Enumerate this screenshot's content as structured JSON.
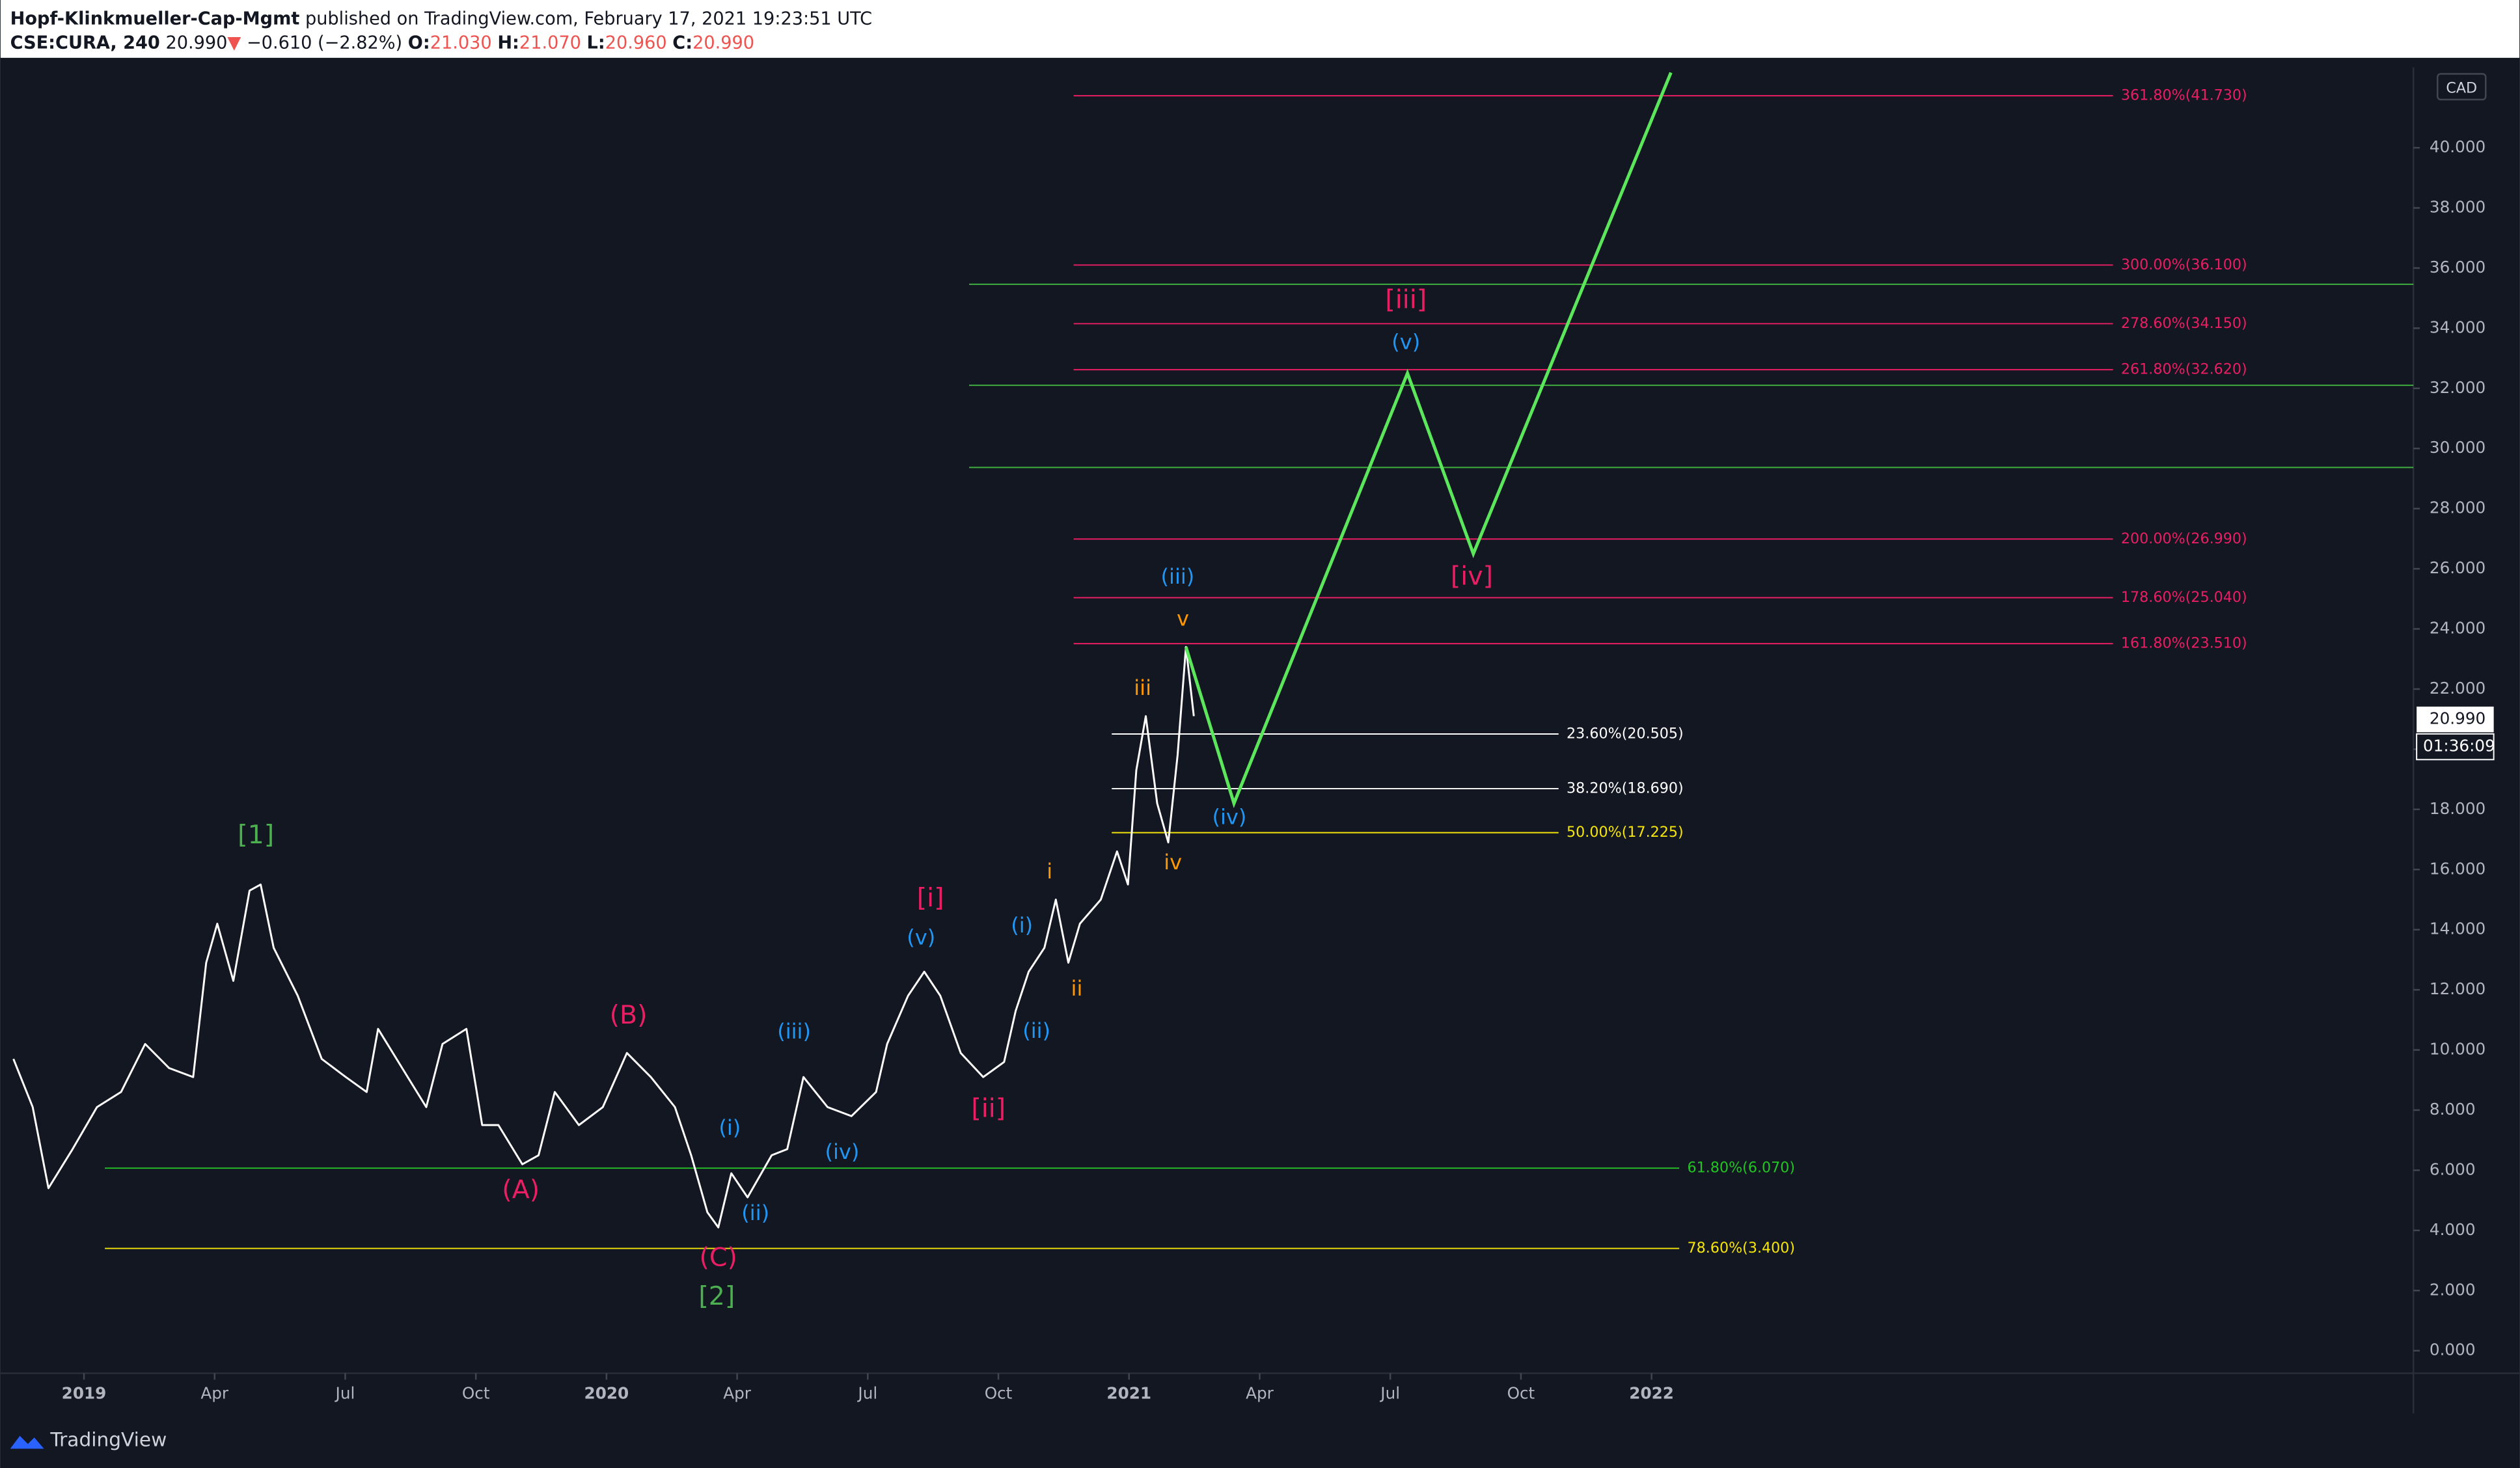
{
  "header": {
    "author": "Hopf-Klinkmueller-Cap-Mgmt",
    "published": "published on TradingView.com, February 17, 2021 19:23:51 UTC",
    "symbol": "CSE:CURA, 240",
    "last": "20.990",
    "arrow": "▼",
    "change": "−0.610 (−2.82%)",
    "o_label": "O:",
    "open": "21.030",
    "h_label": "H:",
    "high": "21.070",
    "l_label": "L:",
    "low": "20.960",
    "c_label": "C:",
    "close": "20.990"
  },
  "footer": {
    "brand": "TradingView"
  },
  "chart_data": {
    "type": "line",
    "color": "#ffffff",
    "currency": "CAD",
    "xlim": [
      2018.865,
      2023.458
    ],
    "ylim": [
      -0.75,
      42.67
    ],
    "xticks": [
      {
        "value": 2019,
        "label": "2019"
      },
      {
        "value": 2019.25,
        "label": "Apr"
      },
      {
        "value": 2019.5,
        "label": "Jul"
      },
      {
        "value": 2019.75,
        "label": "Oct"
      },
      {
        "value": 2020,
        "label": "2020"
      },
      {
        "value": 2020.25,
        "label": "Apr"
      },
      {
        "value": 2020.5,
        "label": "Jul"
      },
      {
        "value": 2020.75,
        "label": "Oct"
      },
      {
        "value": 2021,
        "label": "2021"
      },
      {
        "value": 2021.25,
        "label": "Apr"
      },
      {
        "value": 2021.5,
        "label": "Jul"
      },
      {
        "value": 2021.75,
        "label": "Oct"
      },
      {
        "value": 2022,
        "label": "2022"
      }
    ],
    "yticks": [
      {
        "value": 0,
        "label": "0.000"
      },
      {
        "value": 2,
        "label": "2.000"
      },
      {
        "value": 4,
        "label": "4.000"
      },
      {
        "value": 6,
        "label": "6.000"
      },
      {
        "value": 8,
        "label": "8.000"
      },
      {
        "value": 10,
        "label": "10.000"
      },
      {
        "value": 12,
        "label": "12.000"
      },
      {
        "value": 14,
        "label": "14.000"
      },
      {
        "value": 16,
        "label": "16.000"
      },
      {
        "value": 18,
        "label": "18.000"
      },
      {
        "value": 20,
        "label": "20.000"
      },
      {
        "value": 22,
        "label": "22.000"
      },
      {
        "value": 24,
        "label": "24.000"
      },
      {
        "value": 26,
        "label": "26.000"
      },
      {
        "value": 28,
        "label": "28.000"
      },
      {
        "value": 30,
        "label": "30.000"
      },
      {
        "value": 32,
        "label": "32.000"
      },
      {
        "value": 34,
        "label": "34.000"
      },
      {
        "value": 36,
        "label": "36.000"
      },
      {
        "value": 38,
        "label": "38.000"
      },
      {
        "value": 40,
        "label": "40.000"
      }
    ],
    "x": [
      2018.865,
      2018.902,
      2018.932,
      2018.978,
      2019.025,
      2019.071,
      2019.117,
      2019.163,
      2019.209,
      2019.234,
      2019.255,
      2019.286,
      2019.317,
      2019.338,
      2019.363,
      2019.409,
      2019.455,
      2019.501,
      2019.541,
      2019.563,
      2019.609,
      2019.655,
      2019.686,
      2019.732,
      2019.762,
      2019.793,
      2019.839,
      2019.87,
      2019.901,
      2019.947,
      2019.993,
      2020.039,
      2020.085,
      2020.131,
      2020.162,
      2020.193,
      2020.214,
      2020.239,
      2020.27,
      2020.316,
      2020.346,
      2020.377,
      2020.423,
      2020.469,
      2020.516,
      2020.537,
      2020.577,
      2020.608,
      2020.639,
      2020.678,
      2020.721,
      2020.761,
      2020.783,
      2020.808,
      2020.838,
      2020.86,
      2020.884,
      2020.906,
      2020.946,
      2020.977,
      2020.998,
      2021.014,
      2021.032,
      2021.054,
      2021.075,
      2021.093,
      2021.109,
      2021.124
    ],
    "values": [
      9.7,
      8.1,
      5.4,
      6.7,
      8.1,
      8.6,
      10.2,
      9.4,
      9.1,
      12.9,
      14.2,
      12.3,
      15.3,
      15.5,
      13.4,
      11.8,
      9.7,
      9.1,
      8.6,
      10.7,
      9.4,
      8.1,
      10.2,
      10.7,
      7.5,
      7.5,
      6.2,
      6.5,
      8.6,
      7.5,
      8.1,
      9.9,
      9.1,
      8.1,
      6.5,
      4.6,
      4.1,
      5.9,
      5.1,
      6.5,
      6.7,
      9.1,
      8.1,
      7.8,
      8.6,
      10.2,
      11.8,
      12.6,
      11.8,
      9.9,
      9.1,
      9.6,
      11.3,
      12.6,
      13.4,
      15.0,
      12.9,
      14.2,
      15.0,
      16.6,
      15.5,
      19.3,
      21.1,
      18.2,
      16.9,
      19.8,
      23.4,
      21.1
    ],
    "projection": {
      "color": "#5ce65c",
      "x": [
        2021.109,
        2021.201,
        2021.533,
        2021.659,
        2022.037
      ],
      "values": [
        23.4,
        18.2,
        32.5,
        26.5,
        42.5
      ]
    },
    "levels": [
      {
        "label": "361.80%(41.730)",
        "value": 41.73,
        "color": "#e91e63",
        "x_start": 2020.894,
        "x_end": 2022.883
      },
      {
        "label": "300.00%(36.100)",
        "value": 36.1,
        "color": "#e91e63",
        "x_start": 2020.894,
        "x_end": 2022.883
      },
      {
        "label": "278.60%(34.150)",
        "value": 34.15,
        "color": "#e91e63",
        "x_start": 2020.894,
        "x_end": 2022.883
      },
      {
        "label": "261.80%(32.620)",
        "value": 32.62,
        "color": "#e91e63",
        "x_start": 2020.894,
        "x_end": 2022.883
      },
      {
        "label": "200.00%(26.990)",
        "value": 26.99,
        "color": "#e91e63",
        "x_start": 2020.894,
        "x_end": 2022.883
      },
      {
        "label": "178.60%(25.040)",
        "value": 25.04,
        "color": "#e91e63",
        "x_start": 2020.894,
        "x_end": 2022.883
      },
      {
        "label": "161.80%(23.510)",
        "value": 23.51,
        "color": "#e91e63",
        "x_start": 2020.894,
        "x_end": 2022.883
      },
      {
        "label": "23.60%(20.505)",
        "value": 20.505,
        "color": "#ffffff",
        "x_start": 2020.967,
        "x_end": 2021.822
      },
      {
        "label": "38.20%(18.690)",
        "value": 18.69,
        "color": "#ffffff",
        "x_start": 2020.967,
        "x_end": 2021.822
      },
      {
        "label": "50.00%(17.225)",
        "value": 17.225,
        "color": "#f5e50a",
        "x_start": 2020.967,
        "x_end": 2021.822
      },
      {
        "label": "61.80%(6.070)",
        "value": 6.07,
        "color": "#22c322",
        "x_start": 2019.04,
        "x_end": 2022.053
      },
      {
        "label": "78.60%(3.400)",
        "value": 3.4,
        "color": "#f5e50a",
        "x_start": 2019.04,
        "x_end": 2022.053
      }
    ],
    "support_lines": [
      {
        "value": 35.46,
        "color": "#3fae3f",
        "x_start": 2020.694
      },
      {
        "value": 32.1,
        "color": "#3fae3f",
        "x_start": 2020.694
      },
      {
        "value": 29.37,
        "color": "#3fae3f",
        "x_start": 2020.694
      }
    ],
    "annotations": [
      {
        "text": "[1]",
        "x": 2019.329,
        "y": 17.1,
        "color": "#4caf50"
      },
      {
        "text": "[2]",
        "x": 2020.211,
        "y": 1.76,
        "color": "#4caf50"
      },
      {
        "text": "(A)",
        "x": 2019.836,
        "y": 5.29,
        "color": "#e91e63"
      },
      {
        "text": "(B)",
        "x": 2020.042,
        "y": 11.1,
        "color": "#e91e63"
      },
      {
        "text": "(C)",
        "x": 2020.214,
        "y": 3.04,
        "color": "#e91e63"
      },
      {
        "text": "[i]",
        "x": 2020.62,
        "y": 15.0,
        "color": "#e91e63"
      },
      {
        "text": "[ii]",
        "x": 2020.731,
        "y": 8.0,
        "color": "#e91e63"
      },
      {
        "text": "[iii]",
        "x": 2021.53,
        "y": 34.9,
        "color": "#e91e63"
      },
      {
        "text": "[iv]",
        "x": 2021.656,
        "y": 25.7,
        "color": "#e91e63"
      },
      {
        "text": "(i)",
        "x": 2020.236,
        "y": 7.37,
        "color": "#2196f3"
      },
      {
        "text": "(ii)",
        "x": 2020.285,
        "y": 4.54,
        "color": "#2196f3"
      },
      {
        "text": "(iii)",
        "x": 2020.359,
        "y": 10.57,
        "color": "#2196f3"
      },
      {
        "text": "(iv)",
        "x": 2020.451,
        "y": 6.57,
        "color": "#2196f3"
      },
      {
        "text": "(v)",
        "x": 2020.602,
        "y": 13.7,
        "color": "#2196f3"
      },
      {
        "text": "(i)",
        "x": 2020.795,
        "y": 14.1,
        "color": "#2196f3"
      },
      {
        "text": "(ii)",
        "x": 2020.823,
        "y": 10.6,
        "color": "#2196f3"
      },
      {
        "text": "(iii)",
        "x": 2021.093,
        "y": 25.7,
        "color": "#2196f3"
      },
      {
        "text": "(iv)",
        "x": 2021.192,
        "y": 17.7,
        "color": "#2196f3"
      },
      {
        "text": "(v)",
        "x": 2021.53,
        "y": 33.5,
        "color": "#2196f3"
      },
      {
        "text": "i",
        "x": 2020.848,
        "y": 15.9,
        "color": "#ff9800"
      },
      {
        "text": "ii",
        "x": 2020.9,
        "y": 12.0,
        "color": "#ff9800"
      },
      {
        "text": "iii",
        "x": 2021.026,
        "y": 22.0,
        "color": "#ff9800"
      },
      {
        "text": "iv",
        "x": 2021.084,
        "y": 16.2,
        "color": "#ff9800"
      },
      {
        "text": "v",
        "x": 2021.103,
        "y": 24.3,
        "color": "#ff9800"
      }
    ],
    "last_price": {
      "value": 20.99,
      "label": "20.990"
    },
    "countdown": "01:36:09"
  }
}
